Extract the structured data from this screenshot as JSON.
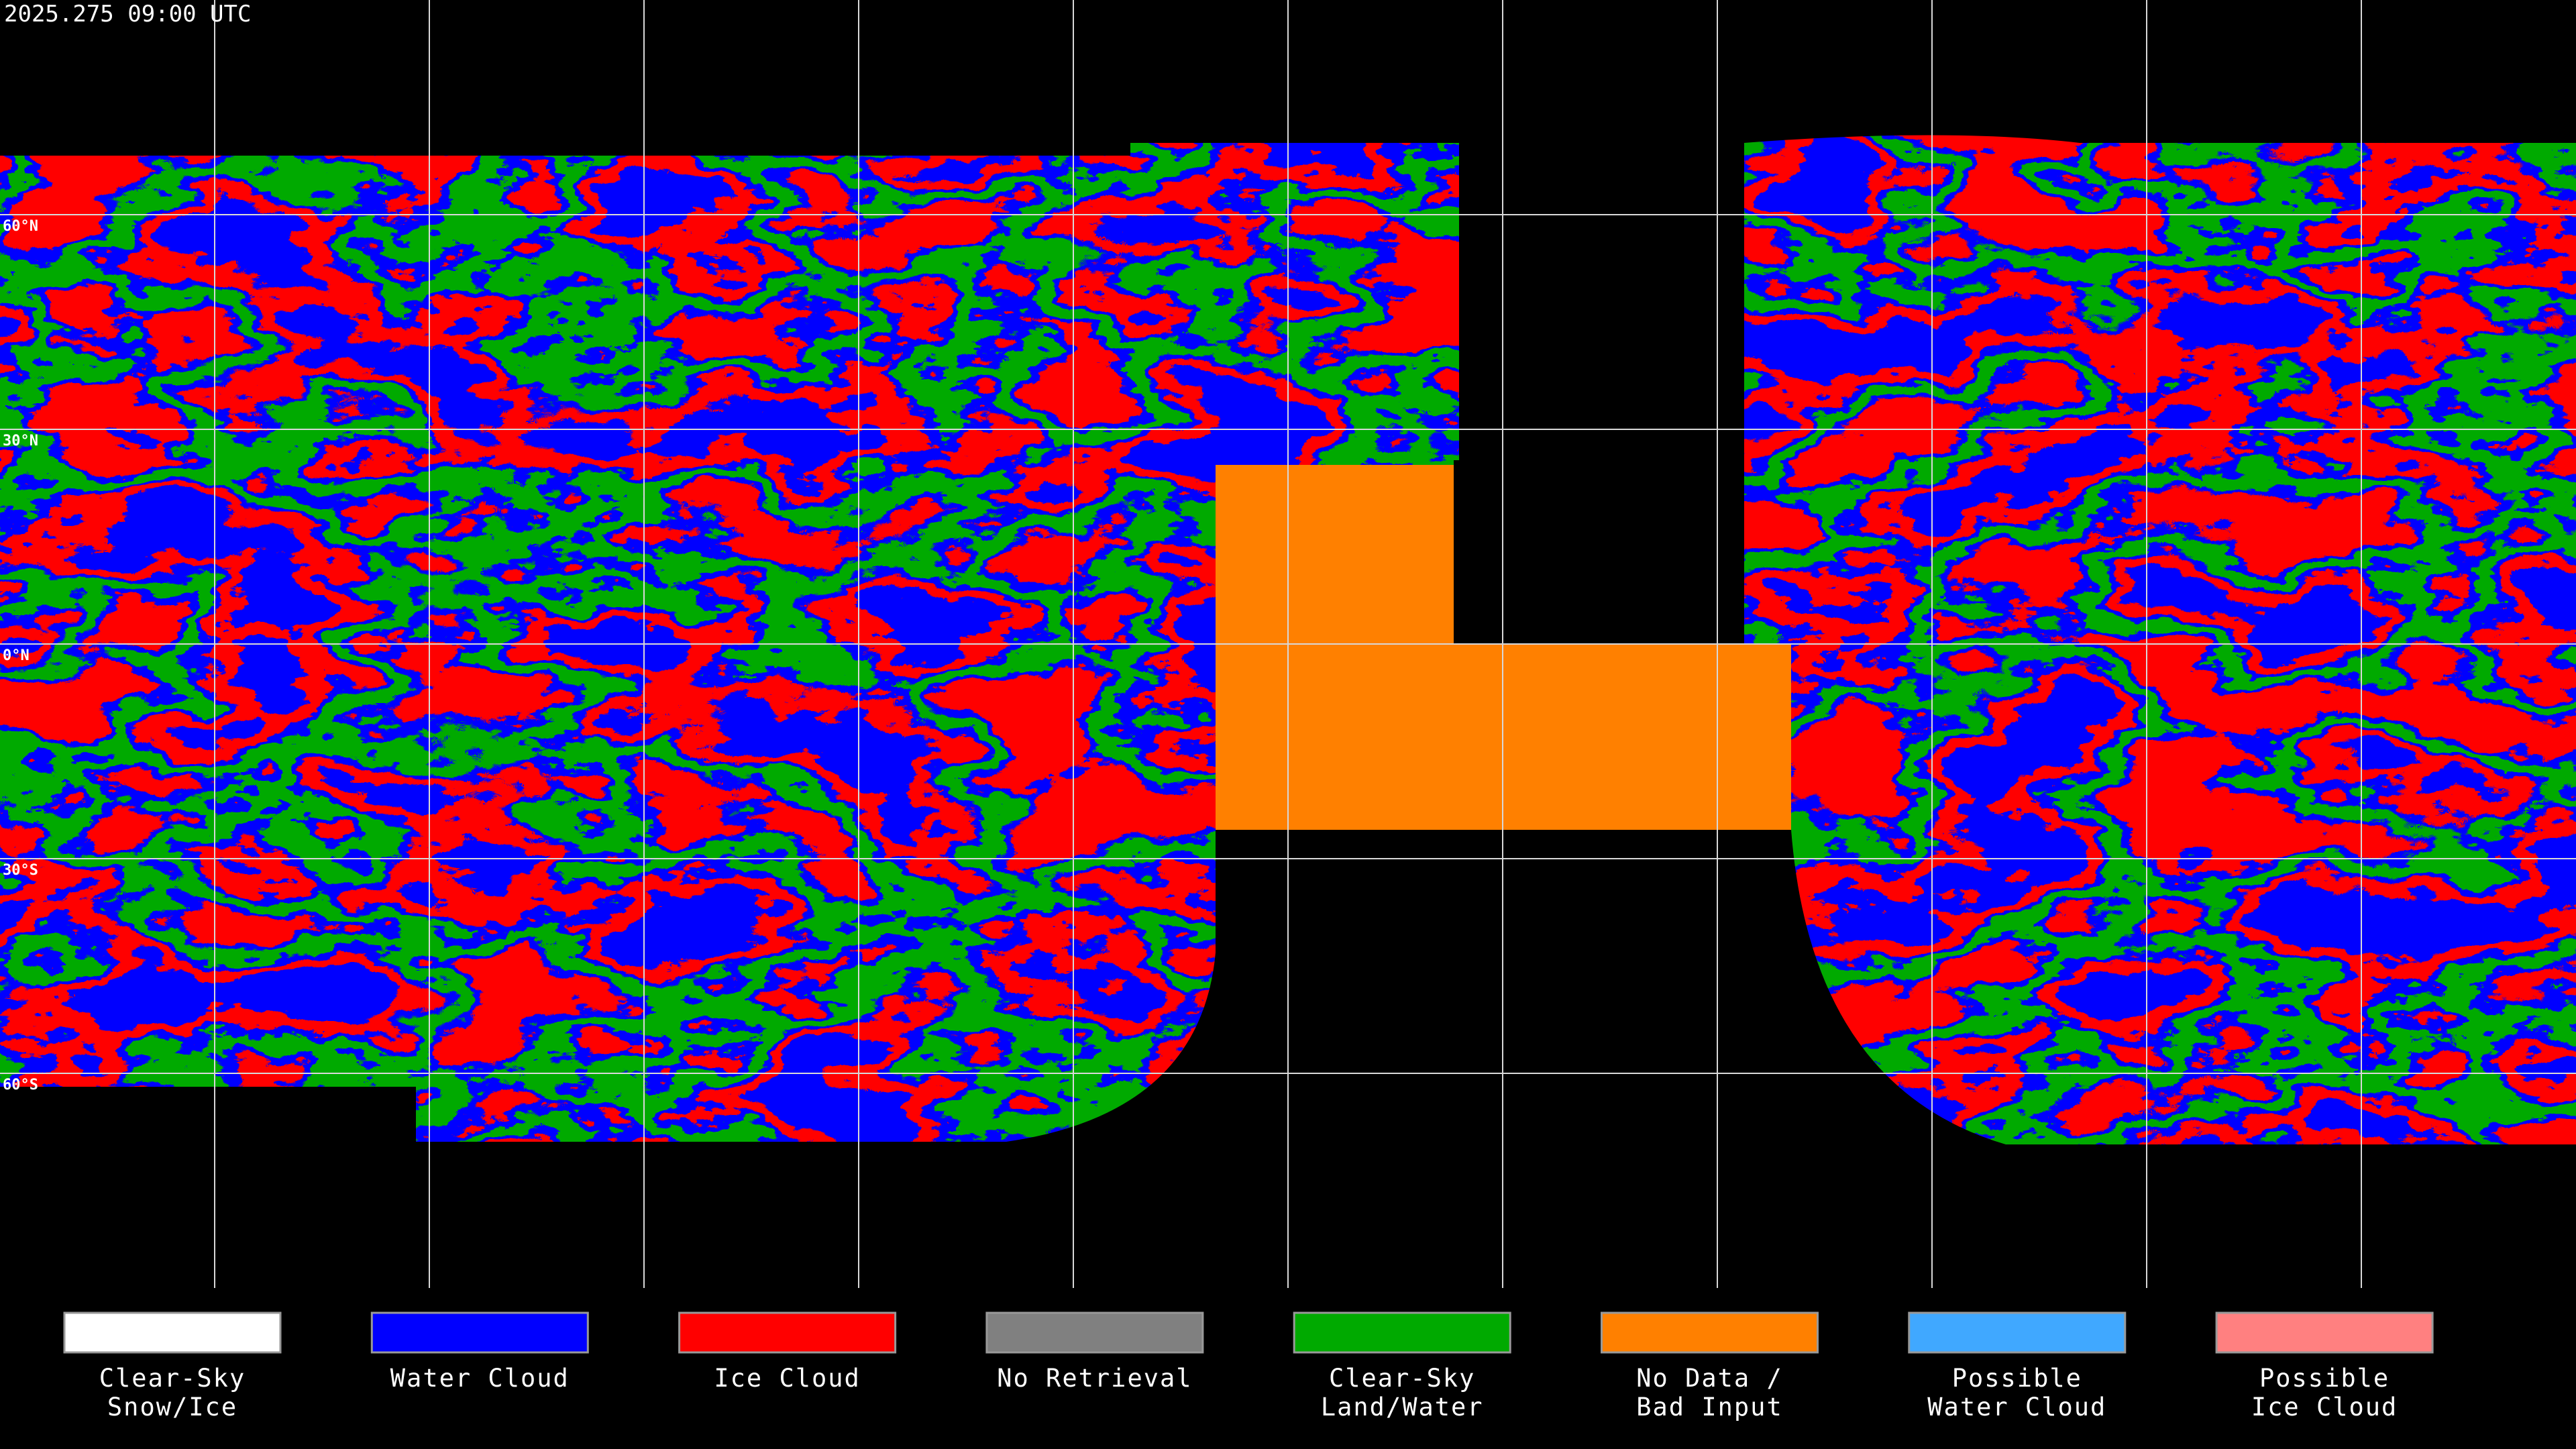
{
  "timestamp": "2025.275 09:00 UTC",
  "latitude_labels": [
    "60°N",
    "30°N",
    "0°N",
    "30°S",
    "60°S"
  ],
  "legend": [
    {
      "lines": [
        "Clear-Sky",
        "Snow/Ice"
      ],
      "color": "#ffffff"
    },
    {
      "lines": [
        "Water Cloud"
      ],
      "color": "#0000ff"
    },
    {
      "lines": [
        "Ice Cloud"
      ],
      "color": "#ff0000"
    },
    {
      "lines": [
        "No Retrieval"
      ],
      "color": "#808080"
    },
    {
      "lines": [
        "Clear-Sky",
        "Land/Water"
      ],
      "color": "#00aa00"
    },
    {
      "lines": [
        "No Data /",
        "Bad Input"
      ],
      "color": "#ff8000"
    },
    {
      "lines": [
        "Possible",
        "Water Cloud"
      ],
      "color": "#40a8ff"
    },
    {
      "lines": [
        "Possible",
        "Ice Cloud"
      ],
      "color": "#ff8080"
    }
  ]
}
